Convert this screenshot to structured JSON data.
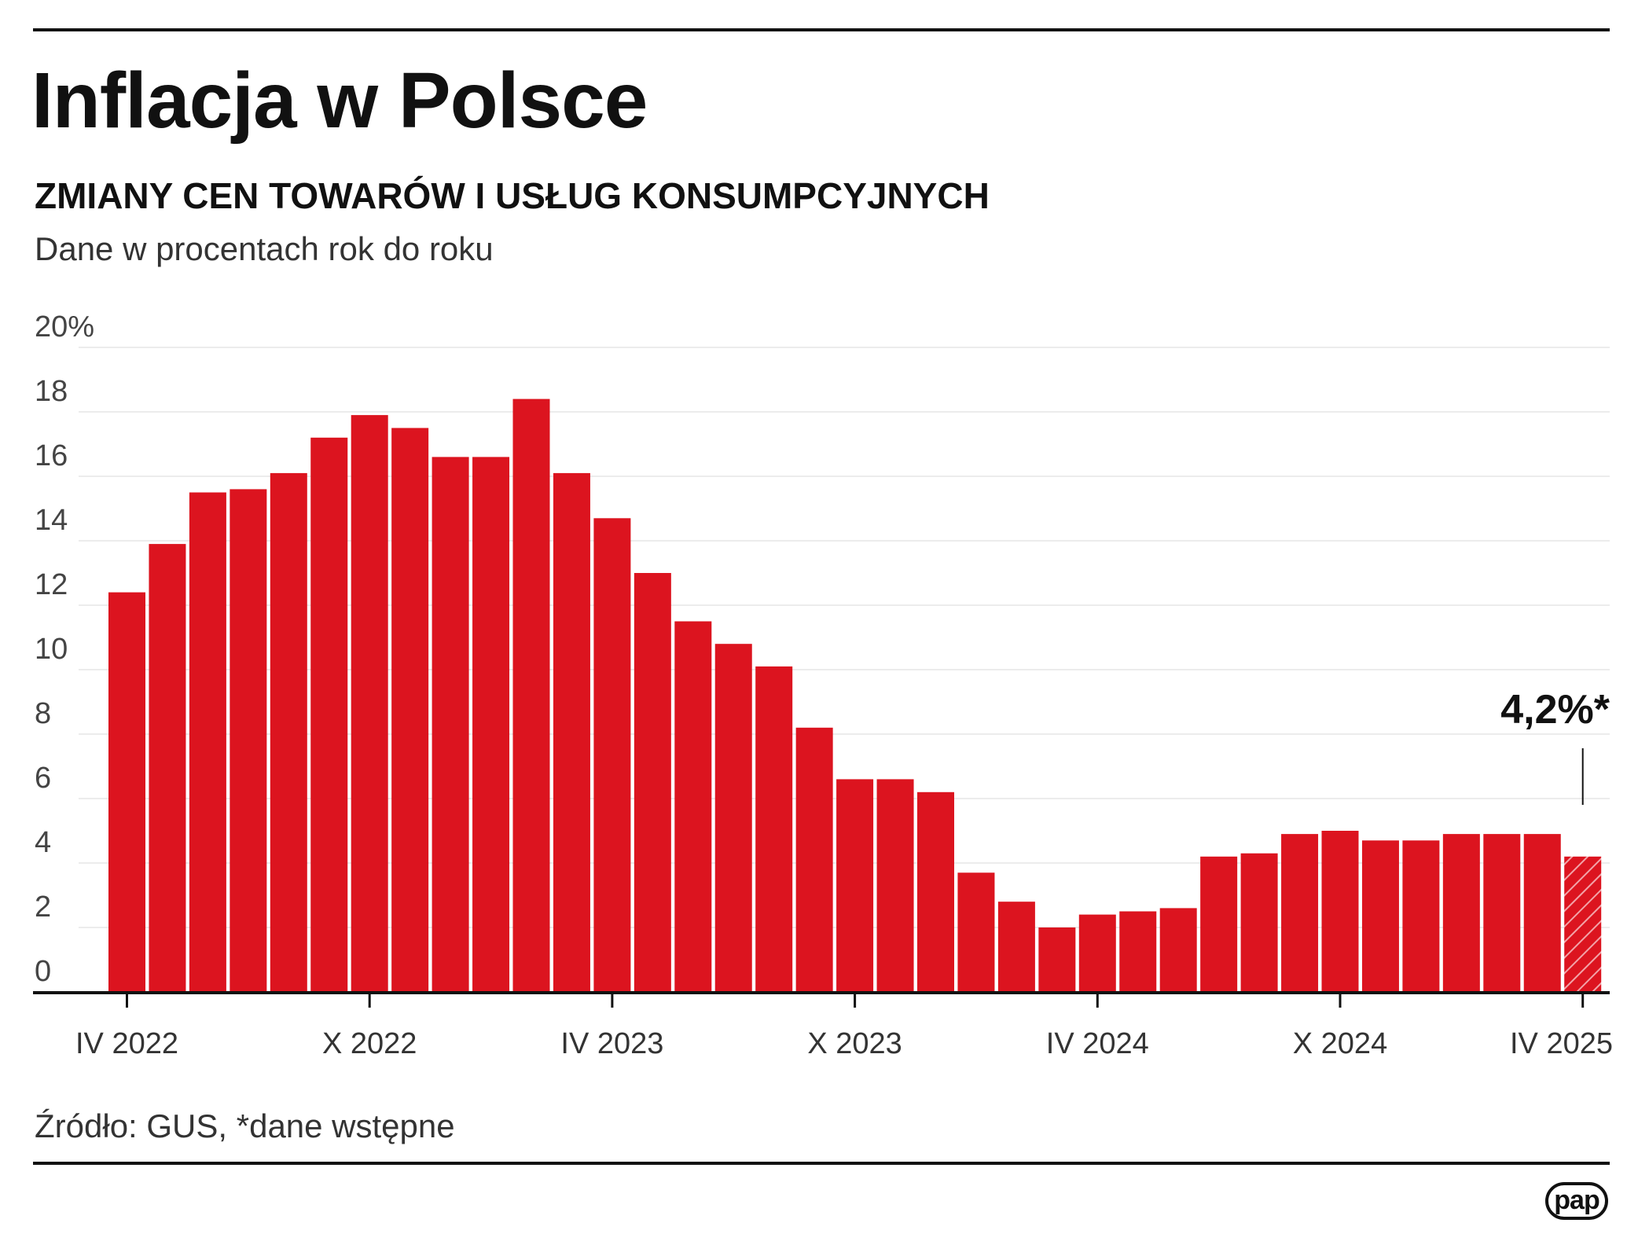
{
  "title": "Inflacja w Polsce",
  "subtitle": "ZMIANY CEN TOWARÓW I USŁUG KONSUMPCYJNYCH",
  "unit_note": "Dane w procentach rok do roku",
  "source": "Źródło: GUS, *dane wstępne",
  "logo_text": "pap",
  "colors": {
    "bar": "#dc141f",
    "axis": "#111111",
    "grid": "#e6e6e6",
    "text": "#111111"
  },
  "chart_data": {
    "type": "bar",
    "title": "Inflacja w Polsce",
    "subtitle": "ZMIANY CEN TOWARÓW I USŁUG KONSUMPCYJNYCH",
    "ylabel": "Dane w procentach rok do roku",
    "xlabel": "",
    "ylim": [
      0,
      20
    ],
    "yticks": [
      0,
      2,
      4,
      6,
      8,
      10,
      12,
      14,
      16,
      18,
      20
    ],
    "ytick_labels": [
      "0",
      "2",
      "4",
      "6",
      "8",
      "10",
      "12",
      "14",
      "16",
      "18",
      "20%"
    ],
    "grid": true,
    "categories": [
      "IV 2022",
      "V 2022",
      "VI 2022",
      "VII 2022",
      "VIII 2022",
      "IX 2022",
      "X 2022",
      "XI 2022",
      "XII 2022",
      "I 2023",
      "II 2023",
      "III 2023",
      "IV 2023",
      "V 2023",
      "VI 2023",
      "VII 2023",
      "VIII 2023",
      "IX 2023",
      "X 2023",
      "XI 2023",
      "XII 2023",
      "I 2024",
      "II 2024",
      "III 2024",
      "IV 2024",
      "V 2024",
      "VI 2024",
      "VII 2024",
      "VIII 2024",
      "IX 2024",
      "X 2024",
      "XI 2024",
      "XII 2024",
      "I 2025",
      "II 2025",
      "III 2025",
      "IV 2025"
    ],
    "values": [
      12.4,
      13.9,
      15.5,
      15.6,
      16.1,
      17.2,
      17.9,
      17.5,
      16.6,
      16.6,
      18.4,
      16.1,
      14.7,
      13.0,
      11.5,
      10.8,
      10.1,
      8.2,
      6.6,
      6.6,
      6.2,
      3.7,
      2.8,
      2.0,
      2.4,
      2.5,
      2.6,
      4.2,
      4.3,
      4.9,
      5.0,
      4.7,
      4.7,
      4.9,
      4.9,
      4.9,
      4.2
    ],
    "preliminary": [
      false,
      false,
      false,
      false,
      false,
      false,
      false,
      false,
      false,
      false,
      false,
      false,
      false,
      false,
      false,
      false,
      false,
      false,
      false,
      false,
      false,
      false,
      false,
      false,
      false,
      false,
      false,
      false,
      false,
      false,
      false,
      false,
      false,
      false,
      false,
      false,
      true
    ],
    "xtick_labels": [
      "IV 2022",
      "X 2022",
      "IV 2023",
      "X 2023",
      "IV 2024",
      "X 2024",
      "IV 2025"
    ],
    "xtick_indices": [
      0,
      6,
      12,
      18,
      24,
      30,
      36
    ],
    "annotation": {
      "text": "4,2%*",
      "index": 36
    }
  }
}
